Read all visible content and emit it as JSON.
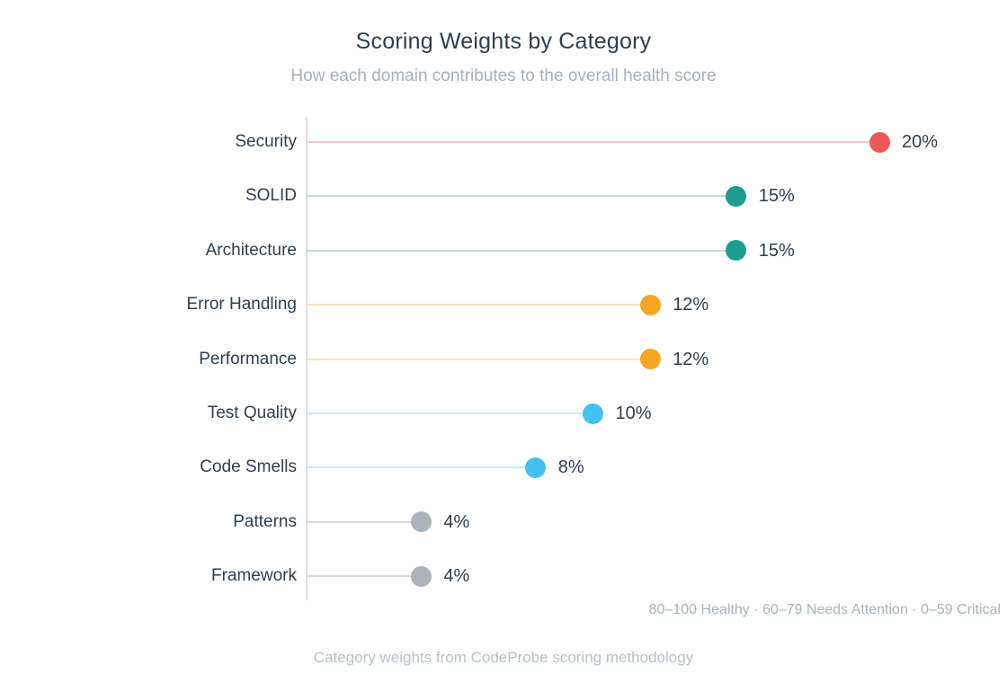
{
  "header": {
    "title": "Scoring Weights by Category",
    "subtitle": "How each domain contributes to the overall health score"
  },
  "footer": {
    "legend_note": "80–100 Healthy · 60–79 Needs Attention · 0–59 Critical",
    "caption": "Category weights from CodeProbe scoring methodology"
  },
  "colors": {
    "title_text": "#2e3e50",
    "subtitle_text": "#a5b0bd",
    "footnote_text": "#a9b2be",
    "caption_text": "#b7bfc9",
    "axis": "#dce0e5"
  },
  "chart_data": {
    "type": "bar",
    "variant": "lollipop",
    "orientation": "horizontal",
    "title": "Scoring Weights by Category",
    "subtitle": "How each domain contributes to the overall health score",
    "xlabel": "",
    "ylabel": "",
    "xlim": [
      0,
      20
    ],
    "grid": false,
    "legend_position": "none",
    "categories": [
      "Security",
      "SOLID",
      "Architecture",
      "Error Handling",
      "Performance",
      "Test Quality",
      "Code Smells",
      "Patterns",
      "Framework"
    ],
    "values": [
      20,
      15,
      15,
      12,
      12,
      10,
      8,
      4,
      4
    ],
    "value_labels": [
      "20%",
      "15%",
      "15%",
      "12%",
      "12%",
      "10%",
      "8%",
      "4%",
      "4%"
    ],
    "dot_colors": [
      "#ee5a5a",
      "#1b9e8f",
      "#1b9e8f",
      "#f5a623",
      "#f5a623",
      "#45bfef",
      "#45bfef",
      "#acb3bd",
      "#acb3bd"
    ],
    "stem_colors": [
      "#f7cbc6",
      "#bcdedc",
      "#bcdedc",
      "#fae3c1",
      "#fae3c1",
      "#cde9f8",
      "#cde9f8",
      "#d5d8dc",
      "#d5d8dc"
    ],
    "annotations": [
      "80–100 Healthy · 60–79 Needs Attention · 0–59 Critical",
      "Category weights from CodeProbe scoring methodology"
    ]
  }
}
